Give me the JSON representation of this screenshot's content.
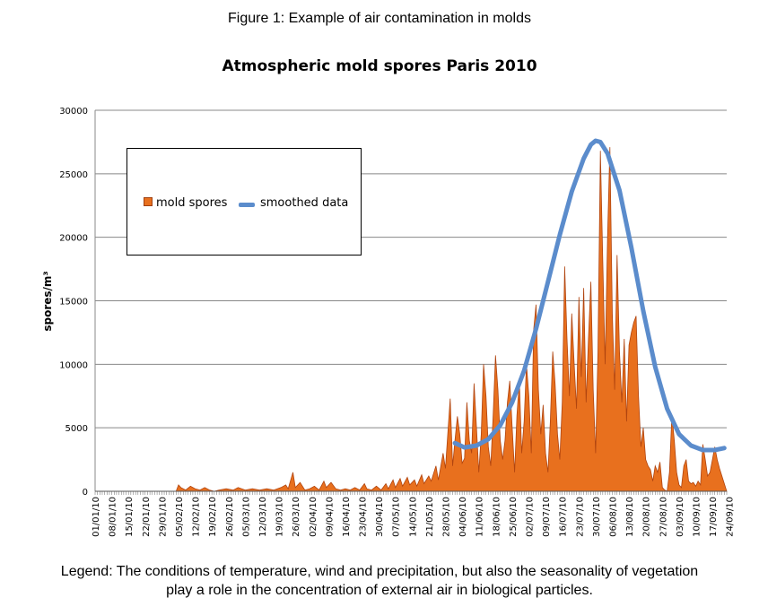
{
  "figure_caption": "Figure 1: Example of air contamination in molds",
  "legend_caption_line1": "Legend: The conditions of temperature, wind and precipitation, but also the seasonality of vegetation",
  "legend_caption_line2": "play a role in the concentration of external air in biological particles.",
  "colors": {
    "spores_fill": "#e8701e",
    "spores_stroke": "#b0440f",
    "smoothed": "#5b8ccc",
    "grid": "#888888"
  },
  "chart_data": {
    "type": "area",
    "title": "Atmospheric mold spores Paris 2010",
    "ylabel": "spores/m³",
    "xlabel": "",
    "ylim": [
      0,
      30000
    ],
    "yticks": [
      0,
      5000,
      10000,
      15000,
      20000,
      25000,
      30000
    ],
    "grid": true,
    "legend_position": "top-left",
    "xtick_labels": [
      "01/01/10",
      "08/01/10",
      "15/01/10",
      "22/01/10",
      "29/01/10",
      "05/02/10",
      "12/02/10",
      "19/02/10",
      "26/02/10",
      "05/03/10",
      "12/03/10",
      "19/03/10",
      "26/03/10",
      "02/04/10",
      "09/04/10",
      "16/04/10",
      "23/04/10",
      "30/04/10",
      "07/05/10",
      "14/05/10",
      "21/05/10",
      "28/05/10",
      "04/06/10",
      "11/06/10",
      "18/06/10",
      "25/06/10",
      "02/07/10",
      "09/07/10",
      "16/07/10",
      "23/07/10",
      "30/07/10",
      "06/08/10",
      "13/08/10",
      "20/08/10",
      "27/08/10",
      "03/09/10",
      "10/09/10",
      "17/09/10",
      "24/09/10"
    ],
    "series": [
      {
        "name": "mold spores",
        "kind": "area",
        "points": [
          [
            0,
            0
          ],
          [
            34,
            0
          ],
          [
            35,
            500
          ],
          [
            36,
            300
          ],
          [
            38,
            100
          ],
          [
            40,
            400
          ],
          [
            42,
            200
          ],
          [
            44,
            100
          ],
          [
            46,
            300
          ],
          [
            48,
            100
          ],
          [
            50,
            0
          ],
          [
            52,
            100
          ],
          [
            55,
            200
          ],
          [
            58,
            100
          ],
          [
            60,
            300
          ],
          [
            63,
            100
          ],
          [
            66,
            200
          ],
          [
            69,
            100
          ],
          [
            72,
            200
          ],
          [
            75,
            100
          ],
          [
            78,
            300
          ],
          [
            80,
            500
          ],
          [
            81,
            200
          ],
          [
            83,
            1500
          ],
          [
            84,
            300
          ],
          [
            86,
            700
          ],
          [
            88,
            100
          ],
          [
            90,
            200
          ],
          [
            92,
            400
          ],
          [
            94,
            100
          ],
          [
            96,
            800
          ],
          [
            97,
            300
          ],
          [
            99,
            700
          ],
          [
            101,
            200
          ],
          [
            103,
            100
          ],
          [
            105,
            200
          ],
          [
            107,
            100
          ],
          [
            109,
            300
          ],
          [
            111,
            100
          ],
          [
            113,
            600
          ],
          [
            114,
            200
          ],
          [
            116,
            100
          ],
          [
            118,
            400
          ],
          [
            120,
            100
          ],
          [
            122,
            600
          ],
          [
            123,
            200
          ],
          [
            125,
            900
          ],
          [
            126,
            300
          ],
          [
            128,
            1000
          ],
          [
            129,
            400
          ],
          [
            131,
            1100
          ],
          [
            132,
            500
          ],
          [
            134,
            900
          ],
          [
            135,
            400
          ],
          [
            137,
            1300
          ],
          [
            138,
            600
          ],
          [
            140,
            1200
          ],
          [
            141,
            800
          ],
          [
            143,
            2000
          ],
          [
            144,
            900
          ],
          [
            146,
            3000
          ],
          [
            147,
            1800
          ],
          [
            149,
            7300
          ],
          [
            150,
            2000
          ],
          [
            151,
            4000
          ],
          [
            152,
            5900
          ],
          [
            153,
            4500
          ],
          [
            154,
            2200
          ],
          [
            155,
            2600
          ],
          [
            156,
            7000
          ],
          [
            157,
            4000
          ],
          [
            158,
            3000
          ],
          [
            159,
            8500
          ],
          [
            160,
            5000
          ],
          [
            161,
            1500
          ],
          [
            162,
            4500
          ],
          [
            163,
            10000
          ],
          [
            164,
            7500
          ],
          [
            165,
            3500
          ],
          [
            166,
            2000
          ],
          [
            167,
            6000
          ],
          [
            168,
            10700
          ],
          [
            169,
            8000
          ],
          [
            170,
            4000
          ],
          [
            171,
            2500
          ],
          [
            172,
            4000
          ],
          [
            173,
            7000
          ],
          [
            174,
            8700
          ],
          [
            175,
            5000
          ],
          [
            176,
            1500
          ],
          [
            177,
            6000
          ],
          [
            178,
            8700
          ],
          [
            179,
            3000
          ],
          [
            180,
            5500
          ],
          [
            181,
            10000
          ],
          [
            182,
            7500
          ],
          [
            183,
            3000
          ],
          [
            184,
            12700
          ],
          [
            185,
            14700
          ],
          [
            186,
            8000
          ],
          [
            187,
            4500
          ],
          [
            188,
            6800
          ],
          [
            189,
            3000
          ],
          [
            190,
            1500
          ],
          [
            191,
            5500
          ],
          [
            192,
            11000
          ],
          [
            193,
            8500
          ],
          [
            194,
            4500
          ],
          [
            195,
            2500
          ],
          [
            196,
            7000
          ],
          [
            197,
            17700
          ],
          [
            198,
            12000
          ],
          [
            199,
            7500
          ],
          [
            200,
            14000
          ],
          [
            201,
            10000
          ],
          [
            202,
            6500
          ],
          [
            203,
            15300
          ],
          [
            204,
            9000
          ],
          [
            205,
            16000
          ],
          [
            206,
            7000
          ],
          [
            207,
            12000
          ],
          [
            208,
            16500
          ],
          [
            209,
            8000
          ],
          [
            210,
            3000
          ],
          [
            211,
            11000
          ],
          [
            212,
            26800
          ],
          [
            213,
            18000
          ],
          [
            214,
            10000
          ],
          [
            215,
            20000
          ],
          [
            216,
            27100
          ],
          [
            217,
            14000
          ],
          [
            218,
            8000
          ],
          [
            219,
            18600
          ],
          [
            220,
            11000
          ],
          [
            221,
            7000
          ],
          [
            222,
            12000
          ],
          [
            223,
            5500
          ],
          [
            224,
            11500
          ],
          [
            225,
            12500
          ],
          [
            226,
            13300
          ],
          [
            227,
            13800
          ],
          [
            228,
            7500
          ],
          [
            229,
            3500
          ],
          [
            230,
            5000
          ],
          [
            231,
            2500
          ],
          [
            232,
            2000
          ],
          [
            233,
            1700
          ],
          [
            234,
            800
          ],
          [
            235,
            2000
          ],
          [
            236,
            1500
          ],
          [
            237,
            2300
          ],
          [
            238,
            300
          ],
          [
            239,
            100
          ],
          [
            240,
            0
          ],
          [
            241,
            1500
          ],
          [
            242,
            6000
          ],
          [
            243,
            4000
          ],
          [
            244,
            1500
          ],
          [
            245,
            500
          ],
          [
            246,
            300
          ],
          [
            247,
            2000
          ],
          [
            248,
            2500
          ],
          [
            249,
            800
          ],
          [
            250,
            600
          ],
          [
            251,
            700
          ],
          [
            252,
            400
          ],
          [
            253,
            800
          ],
          [
            254,
            500
          ],
          [
            255,
            3700
          ],
          [
            256,
            2500
          ],
          [
            257,
            1200
          ],
          [
            258,
            1500
          ],
          [
            259,
            2500
          ],
          [
            260,
            3500
          ],
          [
            261,
            2500
          ],
          [
            262,
            1800
          ],
          [
            265,
            0
          ]
        ]
      },
      {
        "name": "smoothed data",
        "kind": "line",
        "points": [
          [
            151,
            3800
          ],
          [
            155,
            3450
          ],
          [
            160,
            3600
          ],
          [
            165,
            4100
          ],
          [
            170,
            5200
          ],
          [
            175,
            7000
          ],
          [
            180,
            9500
          ],
          [
            185,
            12800
          ],
          [
            190,
            16500
          ],
          [
            195,
            20200
          ],
          [
            200,
            23600
          ],
          [
            205,
            26200
          ],
          [
            208,
            27300
          ],
          [
            210,
            27600
          ],
          [
            212,
            27500
          ],
          [
            215,
            26600
          ],
          [
            220,
            23700
          ],
          [
            225,
            19200
          ],
          [
            230,
            14200
          ],
          [
            235,
            9800
          ],
          [
            240,
            6500
          ],
          [
            245,
            4500
          ],
          [
            250,
            3600
          ],
          [
            255,
            3250
          ],
          [
            260,
            3250
          ],
          [
            264,
            3400
          ]
        ]
      }
    ],
    "x_range": [
      0,
      265
    ]
  }
}
